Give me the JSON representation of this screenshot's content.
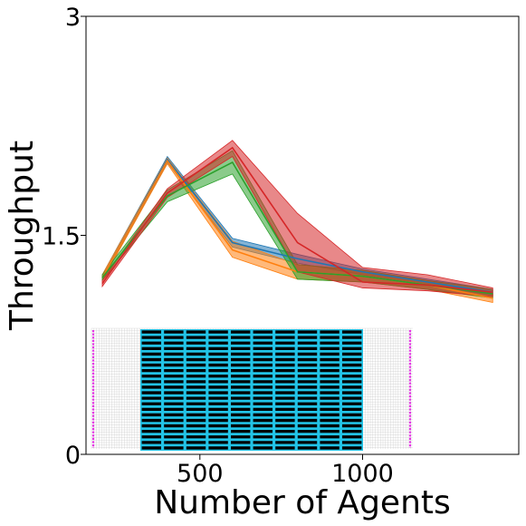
{
  "chart_data": {
    "type": "line",
    "title": "",
    "xlabel": "Number of Agents",
    "ylabel": "Throughput",
    "xlim": [
      150,
      1480
    ],
    "ylim": [
      0,
      3
    ],
    "xticks": [
      500,
      1000
    ],
    "xtick_labels": [
      "500",
      "1000"
    ],
    "yticks": [
      0,
      1.5,
      3
    ],
    "ytick_labels": [
      "0",
      "1.5",
      "3"
    ],
    "grid": false,
    "legend": "none",
    "series": [
      {
        "color": "#1f77b4",
        "x": [
          200,
          400,
          600,
          800,
          1000,
          1200,
          1400
        ],
        "y": [
          1.21,
          2.02,
          1.45,
          1.34,
          1.25,
          1.18,
          1.11
        ],
        "lower": [
          1.19,
          2.0,
          1.42,
          1.31,
          1.23,
          1.16,
          1.09
        ],
        "upper": [
          1.23,
          2.04,
          1.48,
          1.37,
          1.27,
          1.2,
          1.13
        ]
      },
      {
        "color": "#ff7f0e",
        "x": [
          200,
          400,
          600,
          800,
          1000,
          1200,
          1400
        ],
        "y": [
          1.21,
          2.01,
          1.4,
          1.25,
          1.22,
          1.16,
          1.07
        ],
        "lower": [
          1.19,
          1.99,
          1.35,
          1.2,
          1.18,
          1.13,
          1.04
        ],
        "upper": [
          1.23,
          2.03,
          1.46,
          1.3,
          1.26,
          1.19,
          1.1
        ]
      },
      {
        "color": "#2ca02c",
        "x": [
          200,
          400,
          600,
          800,
          1000,
          1200,
          1400
        ],
        "y": [
          1.21,
          1.77,
          2.0,
          1.25,
          1.22,
          1.16,
          1.1
        ],
        "lower": [
          1.19,
          1.73,
          1.92,
          1.2,
          1.18,
          1.13,
          1.07
        ],
        "upper": [
          1.23,
          1.81,
          2.08,
          1.3,
          1.26,
          1.19,
          1.13
        ]
      },
      {
        "color": "#d62728",
        "x": [
          200,
          400,
          600,
          800,
          1000,
          1200,
          1400
        ],
        "y": [
          1.17,
          1.79,
          2.1,
          1.45,
          1.18,
          1.16,
          1.11
        ],
        "lower": [
          1.15,
          1.76,
          2.04,
          1.25,
          1.14,
          1.12,
          1.08
        ],
        "upper": [
          1.19,
          1.82,
          2.15,
          1.65,
          1.28,
          1.23,
          1.14
        ]
      }
    ],
    "inset": {
      "type": "warehouse-grid-map",
      "shelf_color": "#000000",
      "aisle_color": "#22c3e6",
      "station_color": "#e633e6",
      "grid_color": "#c8c8c8"
    }
  }
}
